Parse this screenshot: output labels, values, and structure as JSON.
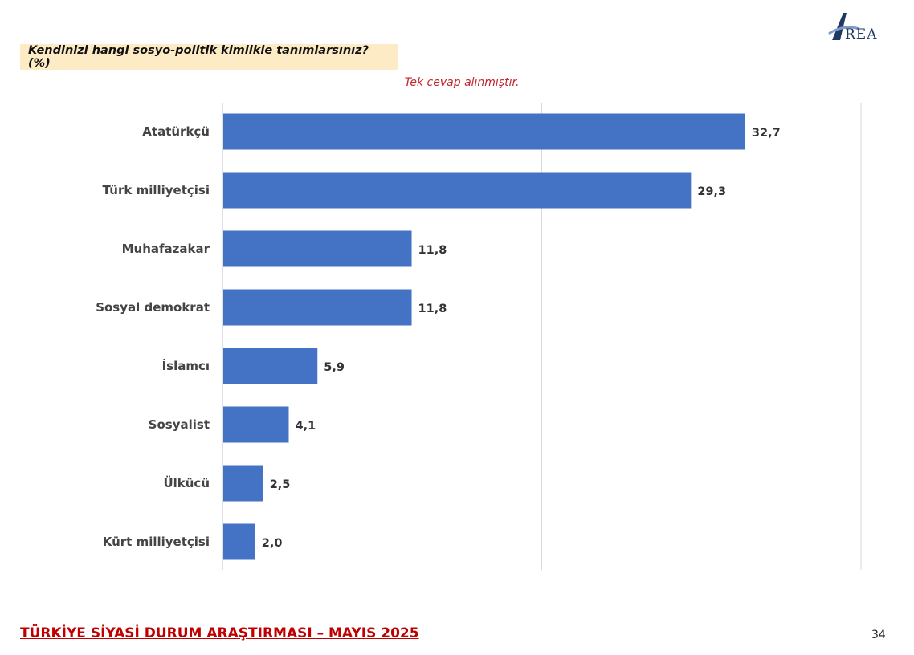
{
  "header": {
    "question": "Kendinizi hangi sosyo-politik kimlikle tanımlarsınız? (%)",
    "note": "Tek cevap alınmıştır."
  },
  "logo": {
    "text": "REA",
    "icon": "area-logo-icon",
    "color": "#1f3864"
  },
  "footer": {
    "title": "TÜRKİYE SİYASİ DURUM ARAŞTIRMASI – MAYIS 2025",
    "page": "34"
  },
  "chart_data": {
    "type": "bar",
    "orientation": "horizontal",
    "categories": [
      "Atatürkçü",
      "Türk milliyetçisi",
      "Muhafazakar",
      "Sosyal demokrat",
      "İslamcı",
      "Sosyalist",
      "Ülkücü",
      "Kürt milliyetçisi"
    ],
    "values": [
      32.7,
      29.3,
      11.8,
      11.8,
      5.9,
      4.1,
      2.5,
      2.0
    ],
    "value_labels": [
      "32,7",
      "29,3",
      "11,8",
      "11,8",
      "5,9",
      "4,1",
      "2,5",
      "2,0"
    ],
    "xlim": [
      0,
      40
    ],
    "gridlines": [
      0,
      20,
      40
    ],
    "grid": true,
    "bar_color": "#4472c4",
    "grid_color": "#d9d9d9"
  }
}
